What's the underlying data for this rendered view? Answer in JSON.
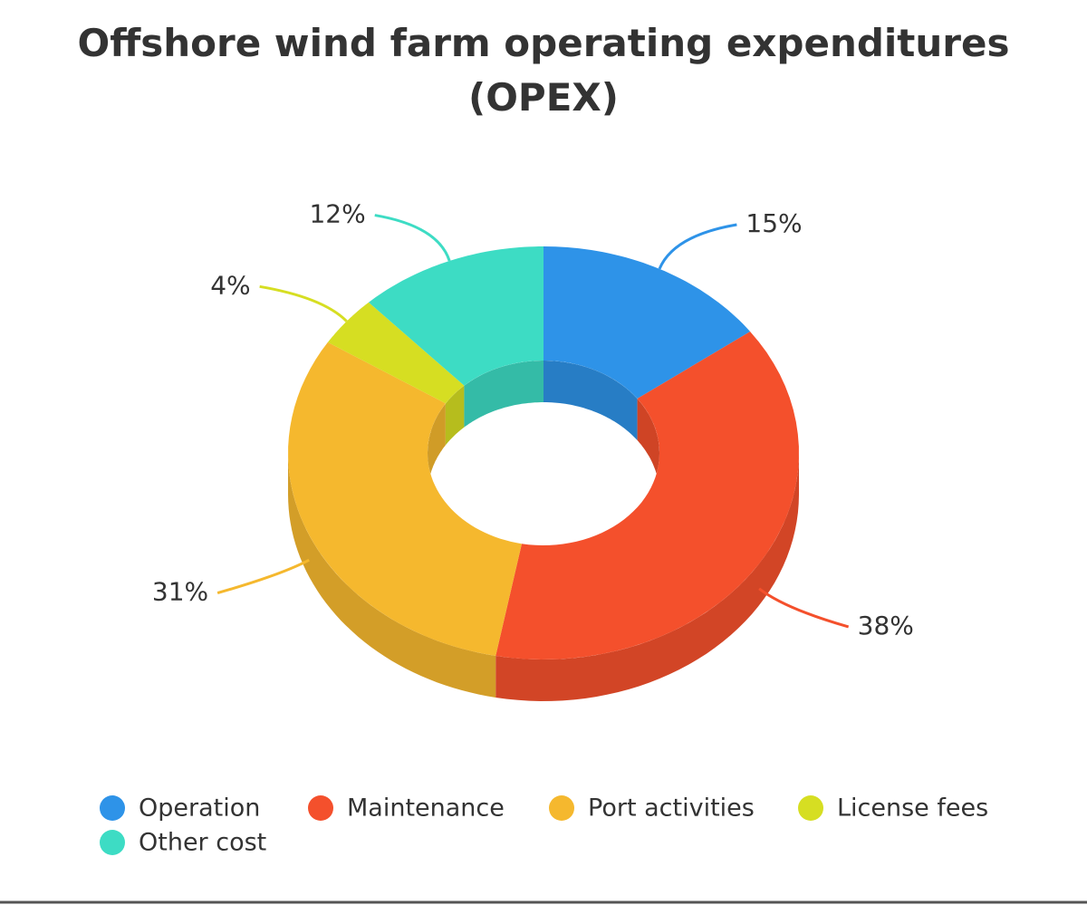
{
  "chart_data": {
    "type": "donut",
    "title": "Offshore wind farm operating expenditures (OPEX)",
    "categories": [
      "Operation",
      "Maintenance",
      "Port activities",
      "License fees",
      "Other cost"
    ],
    "values": [
      15,
      38,
      31,
      4,
      12
    ],
    "value_labels": [
      "15%",
      "38%",
      "31%",
      "4%",
      "12%"
    ],
    "colors": [
      "#2e93e8",
      "#f4502c",
      "#f5b82e",
      "#d6de22",
      "#3ddcc4"
    ],
    "legend": "bottom"
  }
}
